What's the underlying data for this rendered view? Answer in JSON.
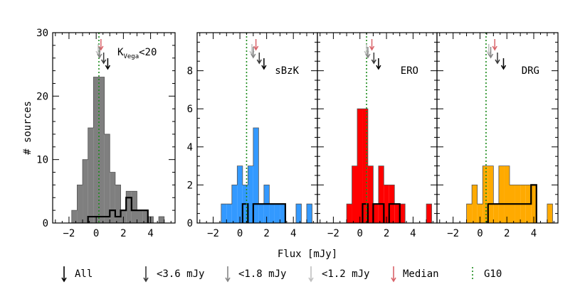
{
  "figure": {
    "ylabel": "# sources",
    "xlabel": "Flux [mJy]",
    "xlim": [
      -3.2,
      5.8
    ],
    "xticks": [
      -2,
      0,
      2,
      4
    ]
  },
  "legend": [
    {
      "label": "All",
      "color": "#000000"
    },
    {
      "label": "<3.6 mJy",
      "color": "#3a3a3a"
    },
    {
      "label": "<1.8 mJy",
      "color": "#858585"
    },
    {
      "label": "<1.2 mJy",
      "color": "#c0c0c0"
    },
    {
      "label": "Median",
      "color": "#d9646a"
    },
    {
      "label": "G10",
      "color": "#1a8a1a",
      "style": "dotted"
    }
  ],
  "chart_data": [
    {
      "type": "bar",
      "title": "K",
      "title_sub": "Vega",
      "title_rest": "<20",
      "fill": "#7f7f7f",
      "ylim": [
        0,
        30
      ],
      "yticks": [
        0,
        10,
        20,
        30
      ],
      "bin_edges": [
        -1.8,
        -1.4,
        -1.0,
        -0.6,
        -0.2,
        0.2,
        0.6,
        1.0,
        1.4,
        1.8,
        2.2,
        2.6,
        3.0,
        3.4,
        3.8,
        4.2,
        4.6,
        5.0,
        5.4
      ],
      "all_counts": [
        2,
        6,
        10,
        15,
        23,
        23,
        14,
        8,
        6,
        2,
        5,
        5,
        2,
        2,
        1,
        0,
        1,
        0
      ],
      "sub_counts": [
        0,
        0,
        0,
        1,
        1,
        1,
        1,
        2,
        1,
        2,
        4,
        2,
        2,
        2,
        0,
        0,
        0,
        0
      ],
      "arrows": {
        "all": 0.85,
        "lt36": 0.55,
        "lt18": 0.25,
        "lt12": 0.15,
        "median": 0.35
      },
      "g10": 0.2
    },
    {
      "type": "bar",
      "title": "sBzK",
      "fill": "#3399ff",
      "ylim": [
        0,
        10
      ],
      "yticks": [
        0,
        2,
        4,
        6,
        8
      ],
      "bin_edges": [
        -1.4,
        -1.0,
        -0.6,
        -0.2,
        0.2,
        0.6,
        1.0,
        1.4,
        1.8,
        2.2,
        2.6,
        3.0,
        3.4,
        3.8,
        4.2,
        4.6,
        5.0,
        5.4
      ],
      "all_counts": [
        1,
        1,
        2,
        3,
        2,
        3,
        5,
        1,
        2,
        1,
        1,
        1,
        0,
        0,
        1,
        0,
        1
      ],
      "sub_counts": [
        0,
        0,
        0,
        0,
        1,
        0,
        1,
        1,
        1,
        1,
        1,
        1,
        0,
        0,
        0,
        0,
        0
      ],
      "arrows": {
        "all": 1.8,
        "lt36": 1.45,
        "lt18": 1.0,
        "lt12": 0.9,
        "median": 1.2
      },
      "g10": 0.5
    },
    {
      "type": "bar",
      "title": "ERO",
      "fill": "#ff0000",
      "ylim": [
        0,
        10
      ],
      "yticks": [
        0,
        2,
        4,
        6,
        8
      ],
      "bin_edges": [
        -1.4,
        -1.0,
        -0.6,
        -0.2,
        0.2,
        0.6,
        1.0,
        1.4,
        1.8,
        2.2,
        2.6,
        3.0,
        3.4,
        3.8,
        4.2,
        4.6,
        5.0,
        5.4
      ],
      "all_counts": [
        0,
        1,
        3,
        6,
        6,
        3,
        1,
        3,
        2,
        2,
        1,
        1,
        0,
        0,
        0,
        0,
        1
      ],
      "sub_counts": [
        0,
        0,
        0,
        0,
        1,
        0,
        1,
        1,
        0,
        1,
        1,
        0,
        0,
        0,
        0,
        0,
        0
      ],
      "arrows": {
        "all": 1.4,
        "lt36": 1.05,
        "lt18": 0.6,
        "lt12": 0.5,
        "median": 0.9
      },
      "g10": 0.5
    },
    {
      "type": "bar",
      "title": "DRG",
      "fill": "#ffaa00",
      "ylim": [
        0,
        10
      ],
      "yticks": [
        0,
        2,
        4,
        6,
        8
      ],
      "bin_edges": [
        -1.4,
        -1.0,
        -0.6,
        -0.2,
        0.2,
        0.6,
        1.0,
        1.4,
        1.8,
        2.2,
        2.6,
        3.0,
        3.4,
        3.8,
        4.2,
        4.6,
        5.0,
        5.4
      ],
      "all_counts": [
        0,
        1,
        2,
        1,
        3,
        3,
        1,
        3,
        3,
        2,
        2,
        2,
        2,
        2,
        0,
        0,
        1
      ],
      "sub_counts": [
        0,
        0,
        0,
        0,
        0,
        1,
        1,
        1,
        1,
        1,
        1,
        1,
        1,
        2,
        0,
        0,
        0
      ],
      "arrows": {
        "all": 1.75,
        "lt36": 1.3,
        "lt18": 0.8,
        "lt12": 0.65,
        "median": 1.1
      },
      "g10": 0.45
    }
  ]
}
